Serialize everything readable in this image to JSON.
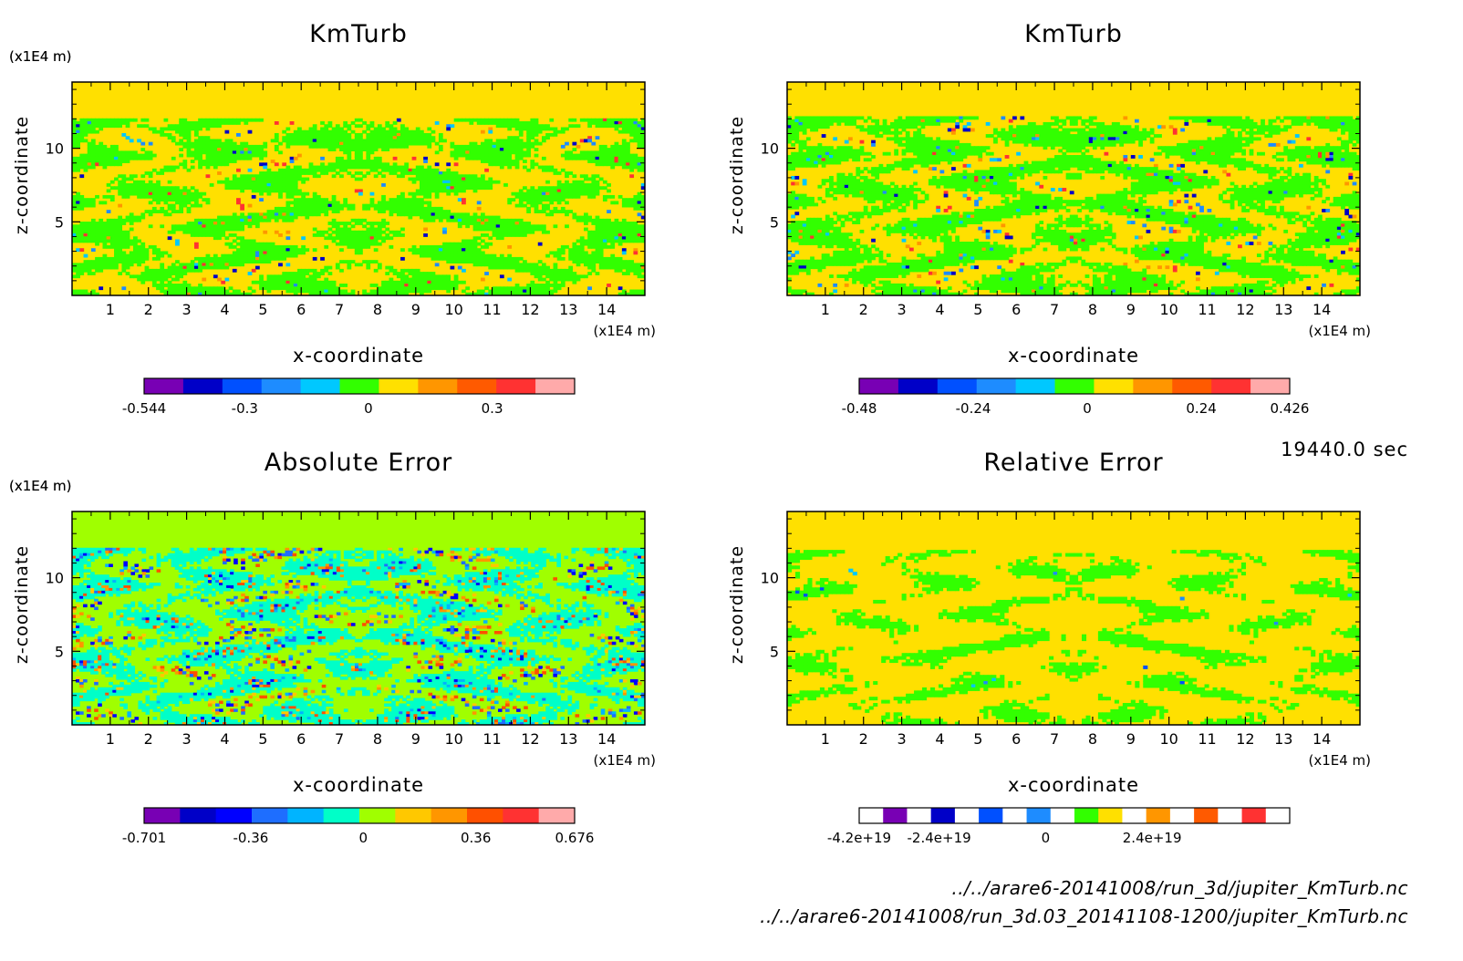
{
  "timestamp": "19440.0 sec",
  "files": [
    "../../arare6-20141008/run_3d/jupiter_KmTurb.nc",
    "../../arare6-20141008/run_3d.03_20141108-1200/jupiter_KmTurb.nc"
  ],
  "chart_data": [
    {
      "type": "heatmap",
      "title": "KmTurb",
      "xlabel": "x-coordinate",
      "ylabel": "z-coordinate",
      "x_unit": "(x1E4 m)",
      "y_unit": "(x1E4 m)",
      "xlim": [
        0,
        15
      ],
      "ylim": [
        0,
        14.5
      ],
      "xticks": [
        1,
        2,
        3,
        4,
        5,
        6,
        7,
        8,
        9,
        10,
        11,
        12,
        13,
        14
      ],
      "yticks": [
        5,
        10
      ],
      "background": "#ffe000",
      "colorbar": {
        "colors": [
          "#7800b4",
          "#0000c8",
          "#0050ff",
          "#1e8cff",
          "#00c8ff",
          "#32ff00",
          "#ffe000",
          "#ff9600",
          "#ff5a00",
          "#ff3232",
          "#ffaaaa"
        ],
        "ticks": [
          {
            "value": -0.544,
            "label": "-0.544"
          },
          {
            "value": -0.3,
            "label": "-0.3"
          },
          {
            "value": 0,
            "label": "0"
          },
          {
            "value": 0.3,
            "label": "0.3"
          }
        ],
        "min": -0.544,
        "max": 0.5
      }
    },
    {
      "type": "heatmap",
      "title": "KmTurb",
      "xlabel": "x-coordinate",
      "ylabel": "z-coordinate",
      "x_unit": "(x1E4 m)",
      "y_unit": "(x1E4 m)",
      "xlim": [
        0,
        15
      ],
      "ylim": [
        0,
        14.5
      ],
      "xticks": [
        1,
        2,
        3,
        4,
        5,
        6,
        7,
        8,
        9,
        10,
        11,
        12,
        13,
        14
      ],
      "yticks": [
        5,
        10
      ],
      "background": "#ffe000",
      "colorbar": {
        "colors": [
          "#7800b4",
          "#0000c8",
          "#0050ff",
          "#1e8cff",
          "#00c8ff",
          "#32ff00",
          "#ffe000",
          "#ff9600",
          "#ff5a00",
          "#ff3232",
          "#ffaaaa"
        ],
        "ticks": [
          {
            "value": -0.48,
            "label": "-0.48"
          },
          {
            "value": -0.24,
            "label": "-0.24"
          },
          {
            "value": 0,
            "label": "0"
          },
          {
            "value": 0.24,
            "label": "0.24"
          },
          {
            "value": 0.426,
            "label": "0.426"
          }
        ],
        "min": -0.48,
        "max": 0.426
      }
    },
    {
      "type": "heatmap",
      "title": "Absolute Error",
      "xlabel": "x-coordinate",
      "ylabel": "z-coordinate",
      "x_unit": "(x1E4 m)",
      "y_unit": "(x1E4 m)",
      "xlim": [
        0,
        15
      ],
      "ylim": [
        0,
        14.5
      ],
      "xticks": [
        1,
        2,
        3,
        4,
        5,
        6,
        7,
        8,
        9,
        10,
        11,
        12,
        13,
        14
      ],
      "yticks": [
        5,
        10
      ],
      "background": "#a0ff00",
      "colorbar": {
        "colors": [
          "#7800b4",
          "#0000c8",
          "#0000ff",
          "#1e6eff",
          "#00b4ff",
          "#00ffc8",
          "#a0ff00",
          "#ffc800",
          "#ff9600",
          "#ff5000",
          "#ff3232",
          "#ffaaaa"
        ],
        "ticks": [
          {
            "value": -0.701,
            "label": "-0.701"
          },
          {
            "value": -0.36,
            "label": "-0.36"
          },
          {
            "value": 0,
            "label": "0"
          },
          {
            "value": 0.36,
            "label": "0.36"
          },
          {
            "value": 0.676,
            "label": "0.676"
          }
        ],
        "min": -0.701,
        "max": 0.676
      }
    },
    {
      "type": "heatmap",
      "title": "Relative Error",
      "xlabel": "x-coordinate",
      "ylabel": "z-coordinate",
      "x_unit": "(x1E4 m)",
      "y_unit": "(x1E4 m)",
      "xlim": [
        0,
        15
      ],
      "ylim": [
        0,
        14.5
      ],
      "xticks": [
        1,
        2,
        3,
        4,
        5,
        6,
        7,
        8,
        9,
        10,
        11,
        12,
        13,
        14
      ],
      "yticks": [
        5,
        10
      ],
      "background": "#ffe000",
      "colorbar": {
        "colors": [
          "#ffffff",
          "#7800b4",
          "#ffffff",
          "#0000c8",
          "#ffffff",
          "#0050ff",
          "#ffffff",
          "#1e8cff",
          "#ffffff",
          "#32ff00",
          "#ffe000",
          "#ffffff",
          "#ff9600",
          "#ffffff",
          "#ff5a00",
          "#ffffff",
          "#ff3232",
          "#ffffff"
        ],
        "ticks": [
          {
            "value": -4.2e+19,
            "label": "-4.2e+19"
          },
          {
            "value": -2.4e+19,
            "label": "-2.4e+19"
          },
          {
            "value": 0,
            "label": "0"
          },
          {
            "value": 2.4e+19,
            "label": "2.4e+19"
          }
        ],
        "min": -4.2e+19,
        "max": 5.5e+19
      }
    }
  ]
}
